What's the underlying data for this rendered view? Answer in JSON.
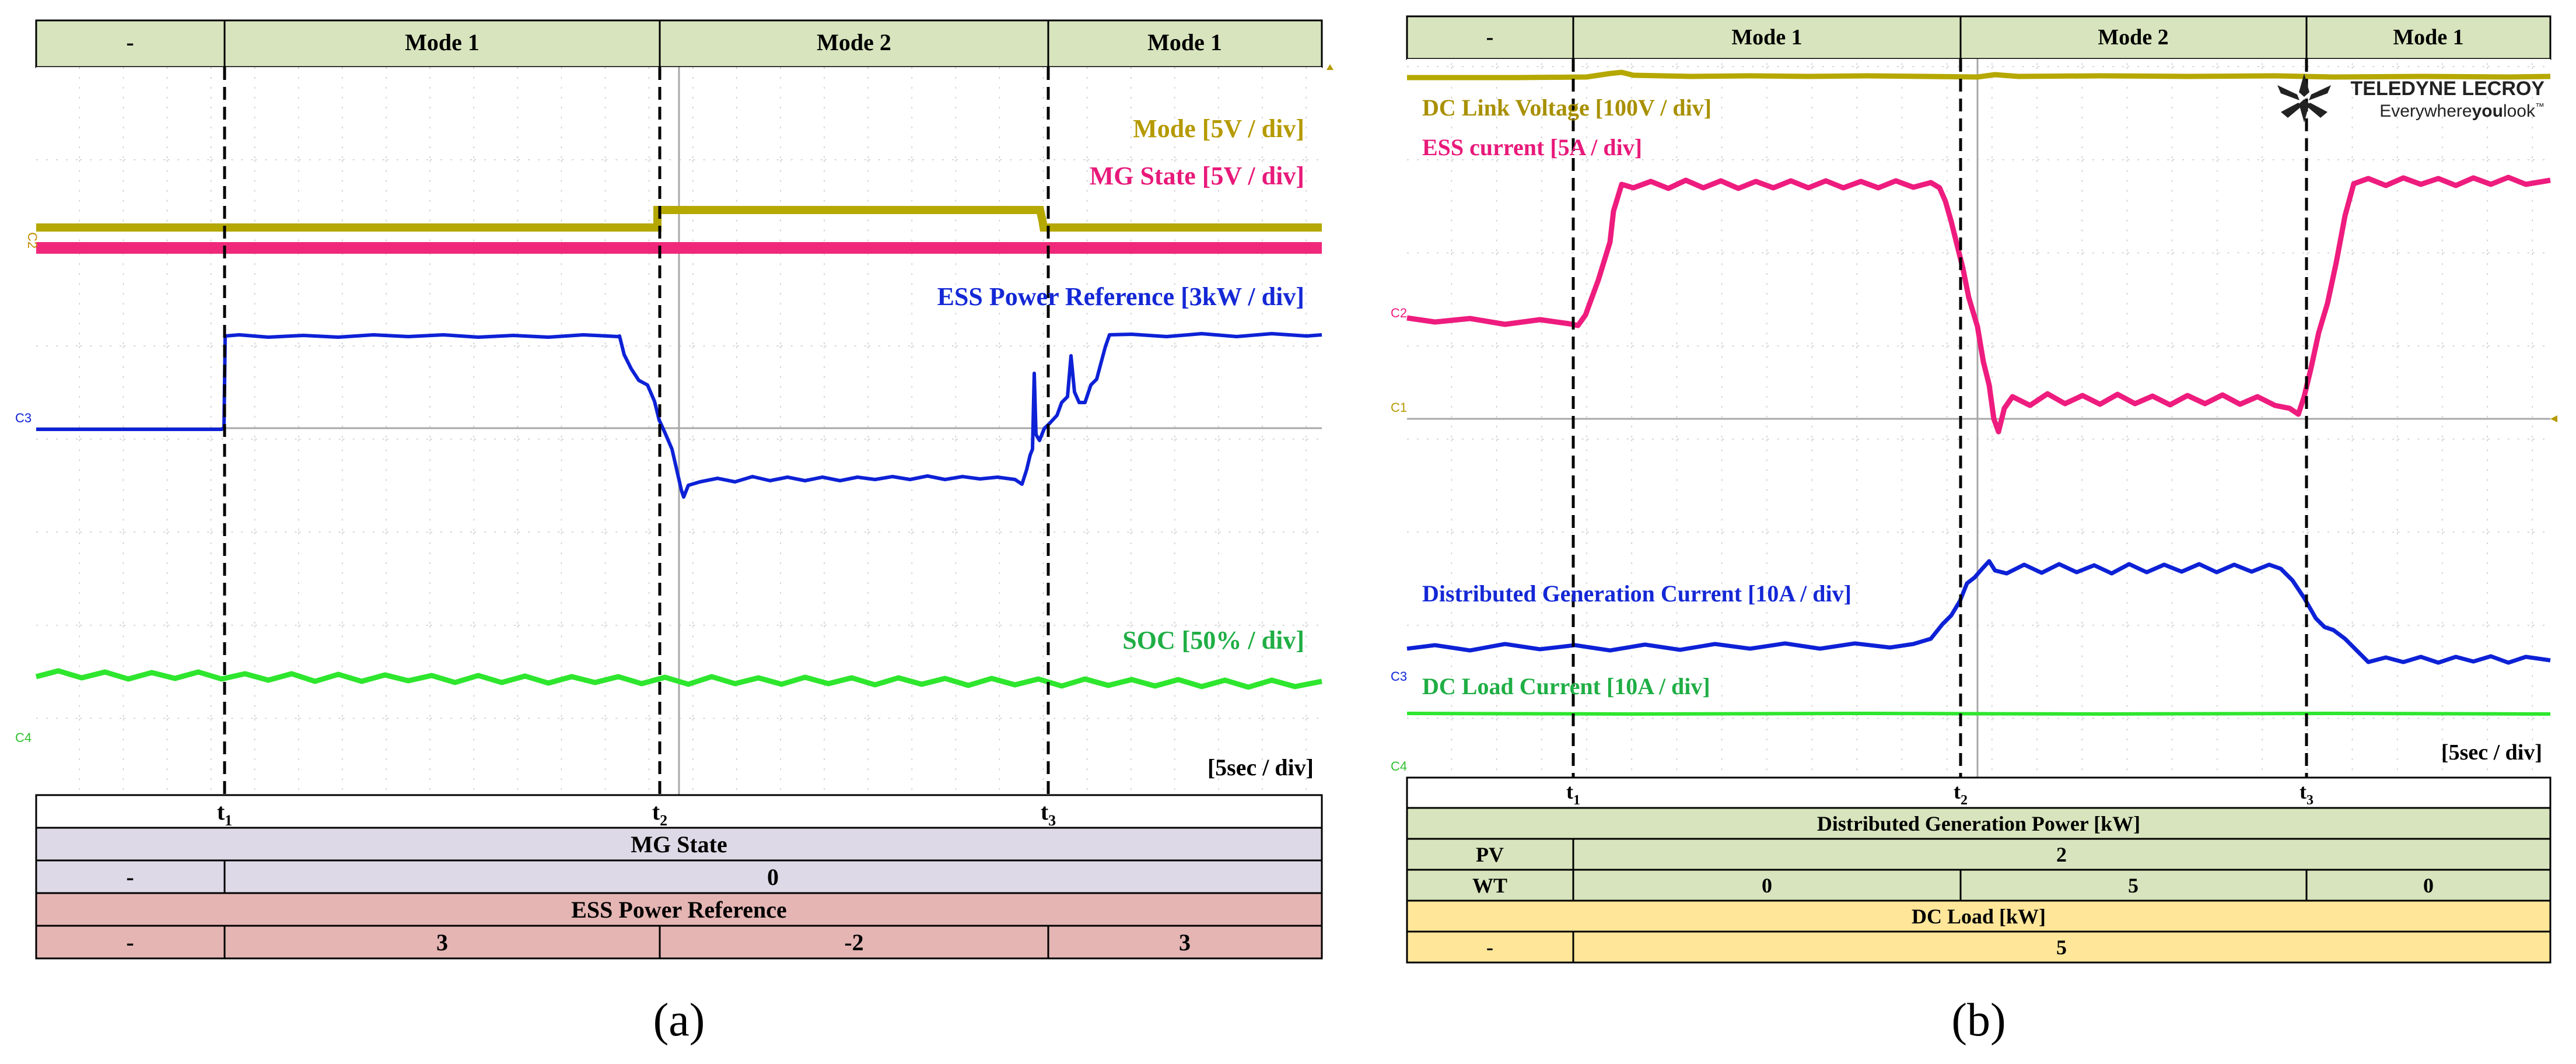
{
  "panel_a": {
    "header": [
      "-",
      "Mode 1",
      "Mode 2",
      "Mode 1"
    ],
    "traces": {
      "mode": "Mode [5V / div]",
      "mg_state": "MG State [5V / div]",
      "ess_power": "ESS Power Reference [3kW / div]",
      "soc": "SOC [50% / div]"
    },
    "channels": [
      "C2",
      "C3",
      "C4"
    ],
    "timebase": "[5sec / div]",
    "time_sub": "t",
    "time_marks": [
      "1",
      "2",
      "3"
    ],
    "mg_state": {
      "title": "MG State",
      "cells": [
        "-",
        "0"
      ]
    },
    "ess_ref": {
      "title": "ESS Power Reference",
      "cells": [
        "-",
        "3",
        "-2",
        "3"
      ]
    },
    "caption": "(a)"
  },
  "panel_b": {
    "header": [
      "-",
      "Mode 1",
      "Mode 2",
      "Mode 1"
    ],
    "traces": {
      "dc_link": "DC Link Voltage [100V / div]",
      "ess_current": "ESS current [5A / div]",
      "dg_current": "Distributed Generation Current [10A / div]",
      "dc_load": "DC Load Current [10A / div]"
    },
    "channels": [
      "C2",
      "C1",
      "C3",
      "C4"
    ],
    "logo": {
      "brand": "TELEDYNE LECROY",
      "tag_a": "Everywhere",
      "tag_b": "you",
      "tag_c": "look",
      "tm": "™"
    },
    "timebase": "[5sec / div]",
    "time_sub": "t",
    "time_marks": [
      "1",
      "2",
      "3"
    ],
    "dg_power": {
      "title": "Distributed Generation Power [kW]",
      "pv": {
        "label": "PV",
        "value": "2"
      },
      "wt": {
        "label": "WT",
        "values": [
          "0",
          "5",
          "0"
        ]
      }
    },
    "dc_load": {
      "title": "DC Load [kW]",
      "cells": [
        "-",
        "5"
      ]
    },
    "caption": "(b)"
  }
}
